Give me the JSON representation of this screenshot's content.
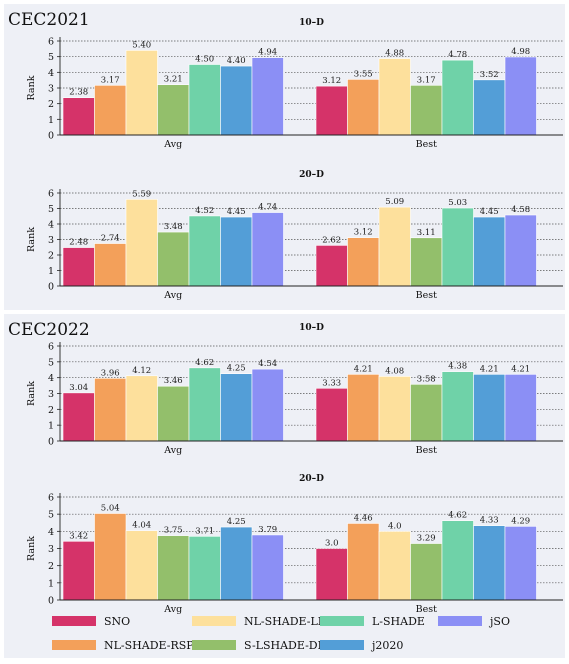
{
  "colors": {
    "SNO": "#d53369",
    "NL-SHADE-RSP": "#f3a05a",
    "NL-SHADE-LBC": "#fde09c",
    "S-LSHADE-DP": "#93bf6b",
    "L-SHADE": "#6fd2a8",
    "j2020": "#539ed7",
    "jSO": "#8b8ff5"
  },
  "panels": [
    {
      "title": "CEC2021"
    },
    {
      "title": "CEC2022"
    }
  ],
  "legend": [
    {
      "name": "SNO"
    },
    {
      "name": "NL-SHADE-LBC"
    },
    {
      "name": "L-SHADE"
    },
    {
      "name": "jSO"
    },
    {
      "name": "NL-SHADE-RSP"
    },
    {
      "name": "S-LSHADE-DP"
    },
    {
      "name": "j2020"
    }
  ],
  "chart_data": [
    {
      "type": "bar",
      "title": "10-D",
      "ylabel": "Rank",
      "categories": [
        "Avg",
        "Best"
      ],
      "ylim": [
        0,
        6
      ],
      "series": [
        {
          "name": "SNO",
          "values": [
            2.38,
            3.12
          ],
          "labels": [
            "2.38",
            "3.12"
          ]
        },
        {
          "name": "NL-SHADE-RSP",
          "values": [
            3.17,
            3.55
          ],
          "labels": [
            "3.17",
            "3.55"
          ]
        },
        {
          "name": "NL-SHADE-LBC",
          "values": [
            5.4,
            4.88
          ],
          "labels": [
            "5.40",
            "4.88"
          ]
        },
        {
          "name": "S-LSHADE-DP",
          "values": [
            3.21,
            3.17
          ],
          "labels": [
            "3.21",
            "3.17"
          ]
        },
        {
          "name": "L-SHADE",
          "values": [
            4.5,
            4.78
          ],
          "labels": [
            "4.50",
            "4.78"
          ]
        },
        {
          "name": "j2020",
          "values": [
            4.4,
            3.52
          ],
          "labels": [
            "4.40",
            "3.52"
          ]
        },
        {
          "name": "jSO",
          "values": [
            4.94,
            4.98
          ],
          "labels": [
            "4.94",
            "4.98"
          ]
        }
      ]
    },
    {
      "type": "bar",
      "title": "20-D",
      "ylabel": "Rank",
      "categories": [
        "Avg",
        "Best"
      ],
      "ylim": [
        0,
        6
      ],
      "series": [
        {
          "name": "SNO",
          "values": [
            2.48,
            2.62
          ],
          "labels": [
            "2.48",
            "2.62"
          ]
        },
        {
          "name": "NL-SHADE-RSP",
          "values": [
            2.74,
            3.12
          ],
          "labels": [
            "2.74",
            "3.12"
          ]
        },
        {
          "name": "NL-SHADE-LBC",
          "values": [
            5.59,
            5.09
          ],
          "labels": [
            "5.59",
            "5.09"
          ]
        },
        {
          "name": "S-LSHADE-DP",
          "values": [
            3.48,
            3.11
          ],
          "labels": [
            "3.48",
            "3.11"
          ]
        },
        {
          "name": "L-SHADE",
          "values": [
            4.52,
            5.03
          ],
          "labels": [
            "4.52",
            "5.03"
          ]
        },
        {
          "name": "j2020",
          "values": [
            4.45,
            4.45
          ],
          "labels": [
            "4.45",
            "4.45"
          ]
        },
        {
          "name": "jSO",
          "values": [
            4.74,
            4.58
          ],
          "labels": [
            "4.74",
            "4.58"
          ]
        }
      ]
    },
    {
      "type": "bar",
      "title": "10-D",
      "ylabel": "Rank",
      "categories": [
        "Avg",
        "Best"
      ],
      "ylim": [
        0,
        6
      ],
      "series": [
        {
          "name": "SNO",
          "values": [
            3.04,
            3.33
          ],
          "labels": [
            "3.04",
            "3.33"
          ]
        },
        {
          "name": "NL-SHADE-RSP",
          "values": [
            3.96,
            4.21
          ],
          "labels": [
            "3.96",
            "4.21"
          ]
        },
        {
          "name": "NL-SHADE-LBC",
          "values": [
            4.12,
            4.08
          ],
          "labels": [
            "4.12",
            "4.08"
          ]
        },
        {
          "name": "S-LSHADE-DP",
          "values": [
            3.46,
            3.58
          ],
          "labels": [
            "3.46",
            "3.58"
          ]
        },
        {
          "name": "L-SHADE",
          "values": [
            4.62,
            4.38
          ],
          "labels": [
            "4.62",
            "4.38"
          ]
        },
        {
          "name": "j2020",
          "values": [
            4.25,
            4.21
          ],
          "labels": [
            "4.25",
            "4.21"
          ]
        },
        {
          "name": "jSO",
          "values": [
            4.54,
            4.21
          ],
          "labels": [
            "4.54",
            "4.21"
          ]
        }
      ]
    },
    {
      "type": "bar",
      "title": "20-D",
      "ylabel": "Rank",
      "categories": [
        "Avg",
        "Best"
      ],
      "ylim": [
        0,
        6
      ],
      "series": [
        {
          "name": "SNO",
          "values": [
            3.42,
            3.0
          ],
          "labels": [
            "3.42",
            "3.0"
          ]
        },
        {
          "name": "NL-SHADE-RSP",
          "values": [
            5.04,
            4.46
          ],
          "labels": [
            "5.04",
            "4.46"
          ]
        },
        {
          "name": "NL-SHADE-LBC",
          "values": [
            4.04,
            4.0
          ],
          "labels": [
            "4.04",
            "4.0"
          ]
        },
        {
          "name": "S-LSHADE-DP",
          "values": [
            3.75,
            3.29
          ],
          "labels": [
            "3.75",
            "3.29"
          ]
        },
        {
          "name": "L-SHADE",
          "values": [
            3.71,
            4.62
          ],
          "labels": [
            "3.71",
            "4.62"
          ]
        },
        {
          "name": "j2020",
          "values": [
            4.25,
            4.33
          ],
          "labels": [
            "4.25",
            "4.33"
          ]
        },
        {
          "name": "jSO",
          "values": [
            3.79,
            4.29
          ],
          "labels": [
            "3.79",
            "4.29"
          ]
        }
      ]
    }
  ]
}
